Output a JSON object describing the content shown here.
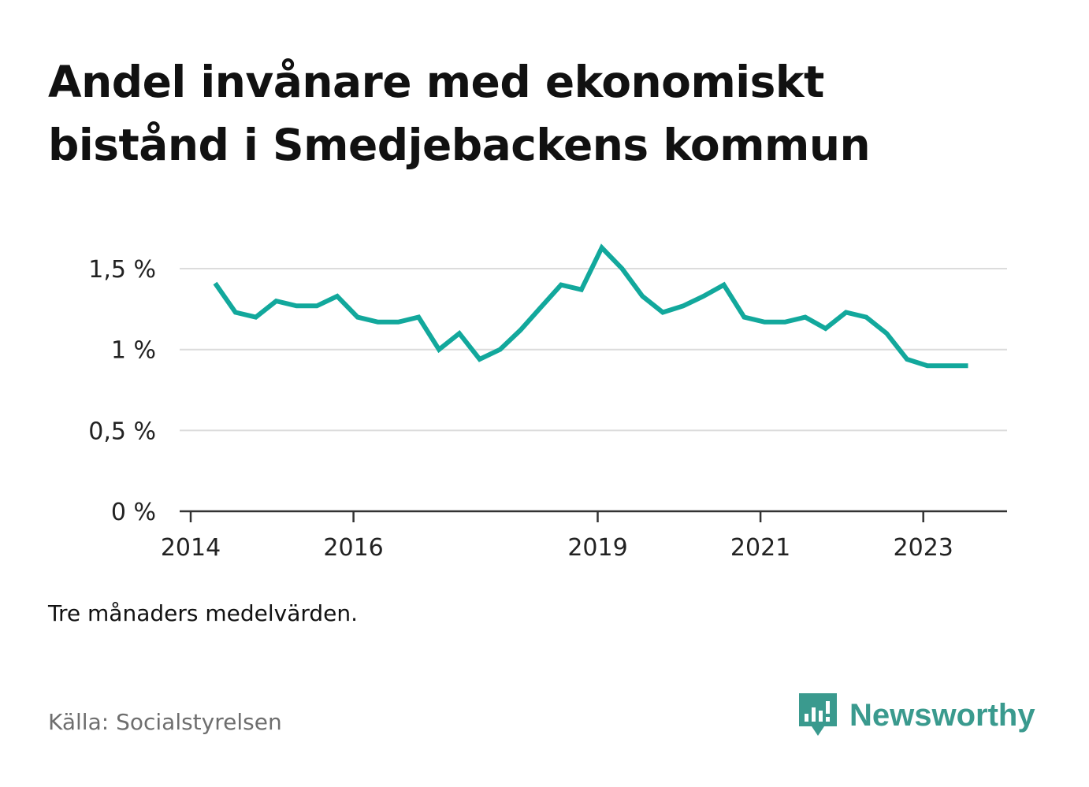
{
  "title": {
    "line1": "Andel invånare med ekonomiskt",
    "line2": "bistånd i Smedjebackens kommun"
  },
  "note": "Tre månaders medelvärden.",
  "source": "Källa: Socialstyrelsen",
  "brand": {
    "name": "Newsworthy",
    "icon": "newsworthy-logo-icon",
    "color": "#3a9a8e"
  },
  "chart_data": {
    "type": "line",
    "title": "",
    "xlabel": "",
    "ylabel": "",
    "line_color": "#12a89c",
    "grid": true,
    "ylim": [
      0,
      1.7
    ],
    "xlim": [
      2014.0,
      2024.0
    ],
    "y_ticks": [
      {
        "value": 0,
        "label": "0 %"
      },
      {
        "value": 0.5,
        "label": "0,5 %"
      },
      {
        "value": 1,
        "label": "1 %"
      },
      {
        "value": 1.5,
        "label": "1,5 %"
      }
    ],
    "x_ticks": [
      {
        "value": 2014,
        "label": "2014"
      },
      {
        "value": 2016,
        "label": "2016"
      },
      {
        "value": 2019,
        "label": "2019"
      },
      {
        "value": 2021,
        "label": "2021"
      },
      {
        "value": 2023,
        "label": "2023"
      }
    ],
    "series": [
      {
        "x": [
          2014.3,
          2014.55,
          2014.8,
          2015.05,
          2015.3,
          2015.55,
          2015.8,
          2016.05,
          2016.3,
          2016.55,
          2016.8,
          2017.05,
          2017.3,
          2017.55,
          2017.8,
          2018.05,
          2018.3,
          2018.55,
          2018.8,
          2019.05,
          2019.3,
          2019.55,
          2019.8,
          2020.05,
          2020.3,
          2020.55,
          2020.8,
          2021.05,
          2021.3,
          2021.55,
          2021.8,
          2022.05,
          2022.3,
          2022.55,
          2022.8,
          2023.05,
          2023.3,
          2023.55
        ],
        "values": [
          1.41,
          1.23,
          1.2,
          1.3,
          1.27,
          1.27,
          1.33,
          1.2,
          1.17,
          1.17,
          1.2,
          1.0,
          1.1,
          0.94,
          1.0,
          1.12,
          1.26,
          1.4,
          1.37,
          1.63,
          1.5,
          1.33,
          1.23,
          1.27,
          1.33,
          1.4,
          1.2,
          1.17,
          1.17,
          1.2,
          1.13,
          1.23,
          1.2,
          1.1,
          0.94,
          0.9,
          0.9,
          0.9
        ]
      }
    ]
  }
}
